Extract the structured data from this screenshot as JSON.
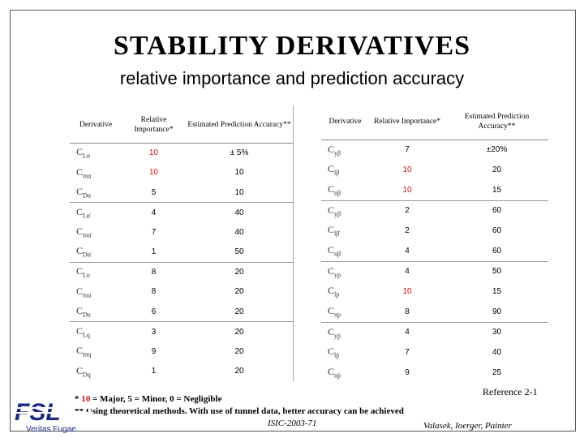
{
  "slide": {
    "title": "STABILITY  DERIVATIVES",
    "subtitle": "relative importance and prediction accuracy"
  },
  "table_headers": {
    "derivative": "Derivative",
    "relative_importance": "Relative Importance*",
    "estimated_accuracy": "Estimated Prediction Accuracy**"
  },
  "left_table": [
    {
      "sym": "C",
      "sub": "Lα",
      "importance": "10",
      "accuracy": "± 5%",
      "imp_red": true,
      "acc_red": false,
      "group_start": false
    },
    {
      "sym": "C",
      "sub": "mα",
      "importance": "10",
      "accuracy": "10",
      "imp_red": true,
      "acc_red": false,
      "group_start": false
    },
    {
      "sym": "C",
      "sub": "Dα",
      "importance": "5",
      "accuracy": "10",
      "imp_red": false,
      "acc_red": false,
      "group_start": false
    },
    {
      "sym": "C",
      "sub": "Lα̇",
      "importance": "4",
      "accuracy": "40",
      "imp_red": false,
      "acc_red": false,
      "group_start": true
    },
    {
      "sym": "C",
      "sub": "mα̇",
      "importance": "7",
      "accuracy": "40",
      "imp_red": false,
      "acc_red": false,
      "group_start": false
    },
    {
      "sym": "C",
      "sub": "Dα̇",
      "importance": "1",
      "accuracy": "50",
      "imp_red": false,
      "acc_red": false,
      "group_start": false
    },
    {
      "sym": "C",
      "sub": "Lu",
      "importance": "8",
      "accuracy": "20",
      "imp_red": false,
      "acc_red": false,
      "group_start": true
    },
    {
      "sym": "C",
      "sub": "mu",
      "importance": "8",
      "accuracy": "20",
      "imp_red": false,
      "acc_red": false,
      "group_start": false
    },
    {
      "sym": "C",
      "sub": "Du",
      "importance": "6",
      "accuracy": "20",
      "imp_red": false,
      "acc_red": false,
      "group_start": false
    },
    {
      "sym": "C",
      "sub": "Lq",
      "importance": "3",
      "accuracy": "20",
      "imp_red": false,
      "acc_red": false,
      "group_start": true
    },
    {
      "sym": "C",
      "sub": "mq",
      "importance": "9",
      "accuracy": "20",
      "imp_red": false,
      "acc_red": false,
      "group_start": false
    },
    {
      "sym": "C",
      "sub": "Dq",
      "importance": "1",
      "accuracy": "20",
      "imp_red": false,
      "acc_red": false,
      "group_start": false
    }
  ],
  "right_table": [
    {
      "sym": "C",
      "sub": "yβ",
      "importance": "7",
      "accuracy": "±20%",
      "imp_red": false,
      "acc_red": false,
      "group_start": false
    },
    {
      "sym": "C",
      "sub": "lβ",
      "importance": "10",
      "accuracy": "20",
      "imp_red": true,
      "acc_red": false,
      "group_start": false
    },
    {
      "sym": "C",
      "sub": "nβ",
      "importance": "10",
      "accuracy": "15",
      "imp_red": true,
      "acc_red": false,
      "group_start": false
    },
    {
      "sym": "C",
      "sub": "yβ̇",
      "importance": "2",
      "accuracy": "60",
      "imp_red": false,
      "acc_red": false,
      "group_start": true
    },
    {
      "sym": "C",
      "sub": "lβ̇",
      "importance": "2",
      "accuracy": "60",
      "imp_red": false,
      "acc_red": false,
      "group_start": false
    },
    {
      "sym": "C",
      "sub": "nβ̇",
      "importance": "4",
      "accuracy": "60",
      "imp_red": false,
      "acc_red": false,
      "group_start": false
    },
    {
      "sym": "C",
      "sub": "yp",
      "importance": "4",
      "accuracy": "50",
      "imp_red": false,
      "acc_red": false,
      "group_start": true
    },
    {
      "sym": "C",
      "sub": "lp",
      "importance": "10",
      "accuracy": "15",
      "imp_red": true,
      "acc_red": false,
      "group_start": false
    },
    {
      "sym": "C",
      "sub": "np",
      "importance": "8",
      "accuracy": "90",
      "imp_red": false,
      "acc_red": false,
      "group_start": false
    },
    {
      "sym": "C",
      "sub": "yṗ",
      "importance": "4",
      "accuracy": "30",
      "imp_red": false,
      "acc_red": false,
      "group_start": true
    },
    {
      "sym": "C",
      "sub": "lṗ",
      "importance": "7",
      "accuracy": "40",
      "imp_red": false,
      "acc_red": false,
      "group_start": false
    },
    {
      "sym": "C",
      "sub": "nṗ",
      "importance": "9",
      "accuracy": "25",
      "imp_red": false,
      "acc_red": false,
      "group_start": false
    }
  ],
  "footnotes": {
    "note1_prefix": "*  ",
    "note1_red": "10",
    "note1_text": " = Major, 5 = Minor, 0 = Negligible",
    "note2": "** Using theoretical methods.  With use of tunnel data, better accuracy can be achieved"
  },
  "reference": "Reference  2-1",
  "course_code": "ISIC-2003-71",
  "authors": "Valasek, Ioerger, Painter",
  "logo": {
    "letters": "FSL",
    "tagline": "Veritas Fugae"
  },
  "colors": {
    "major": "#d01010",
    "logo_blue": "#1b2a80"
  }
}
